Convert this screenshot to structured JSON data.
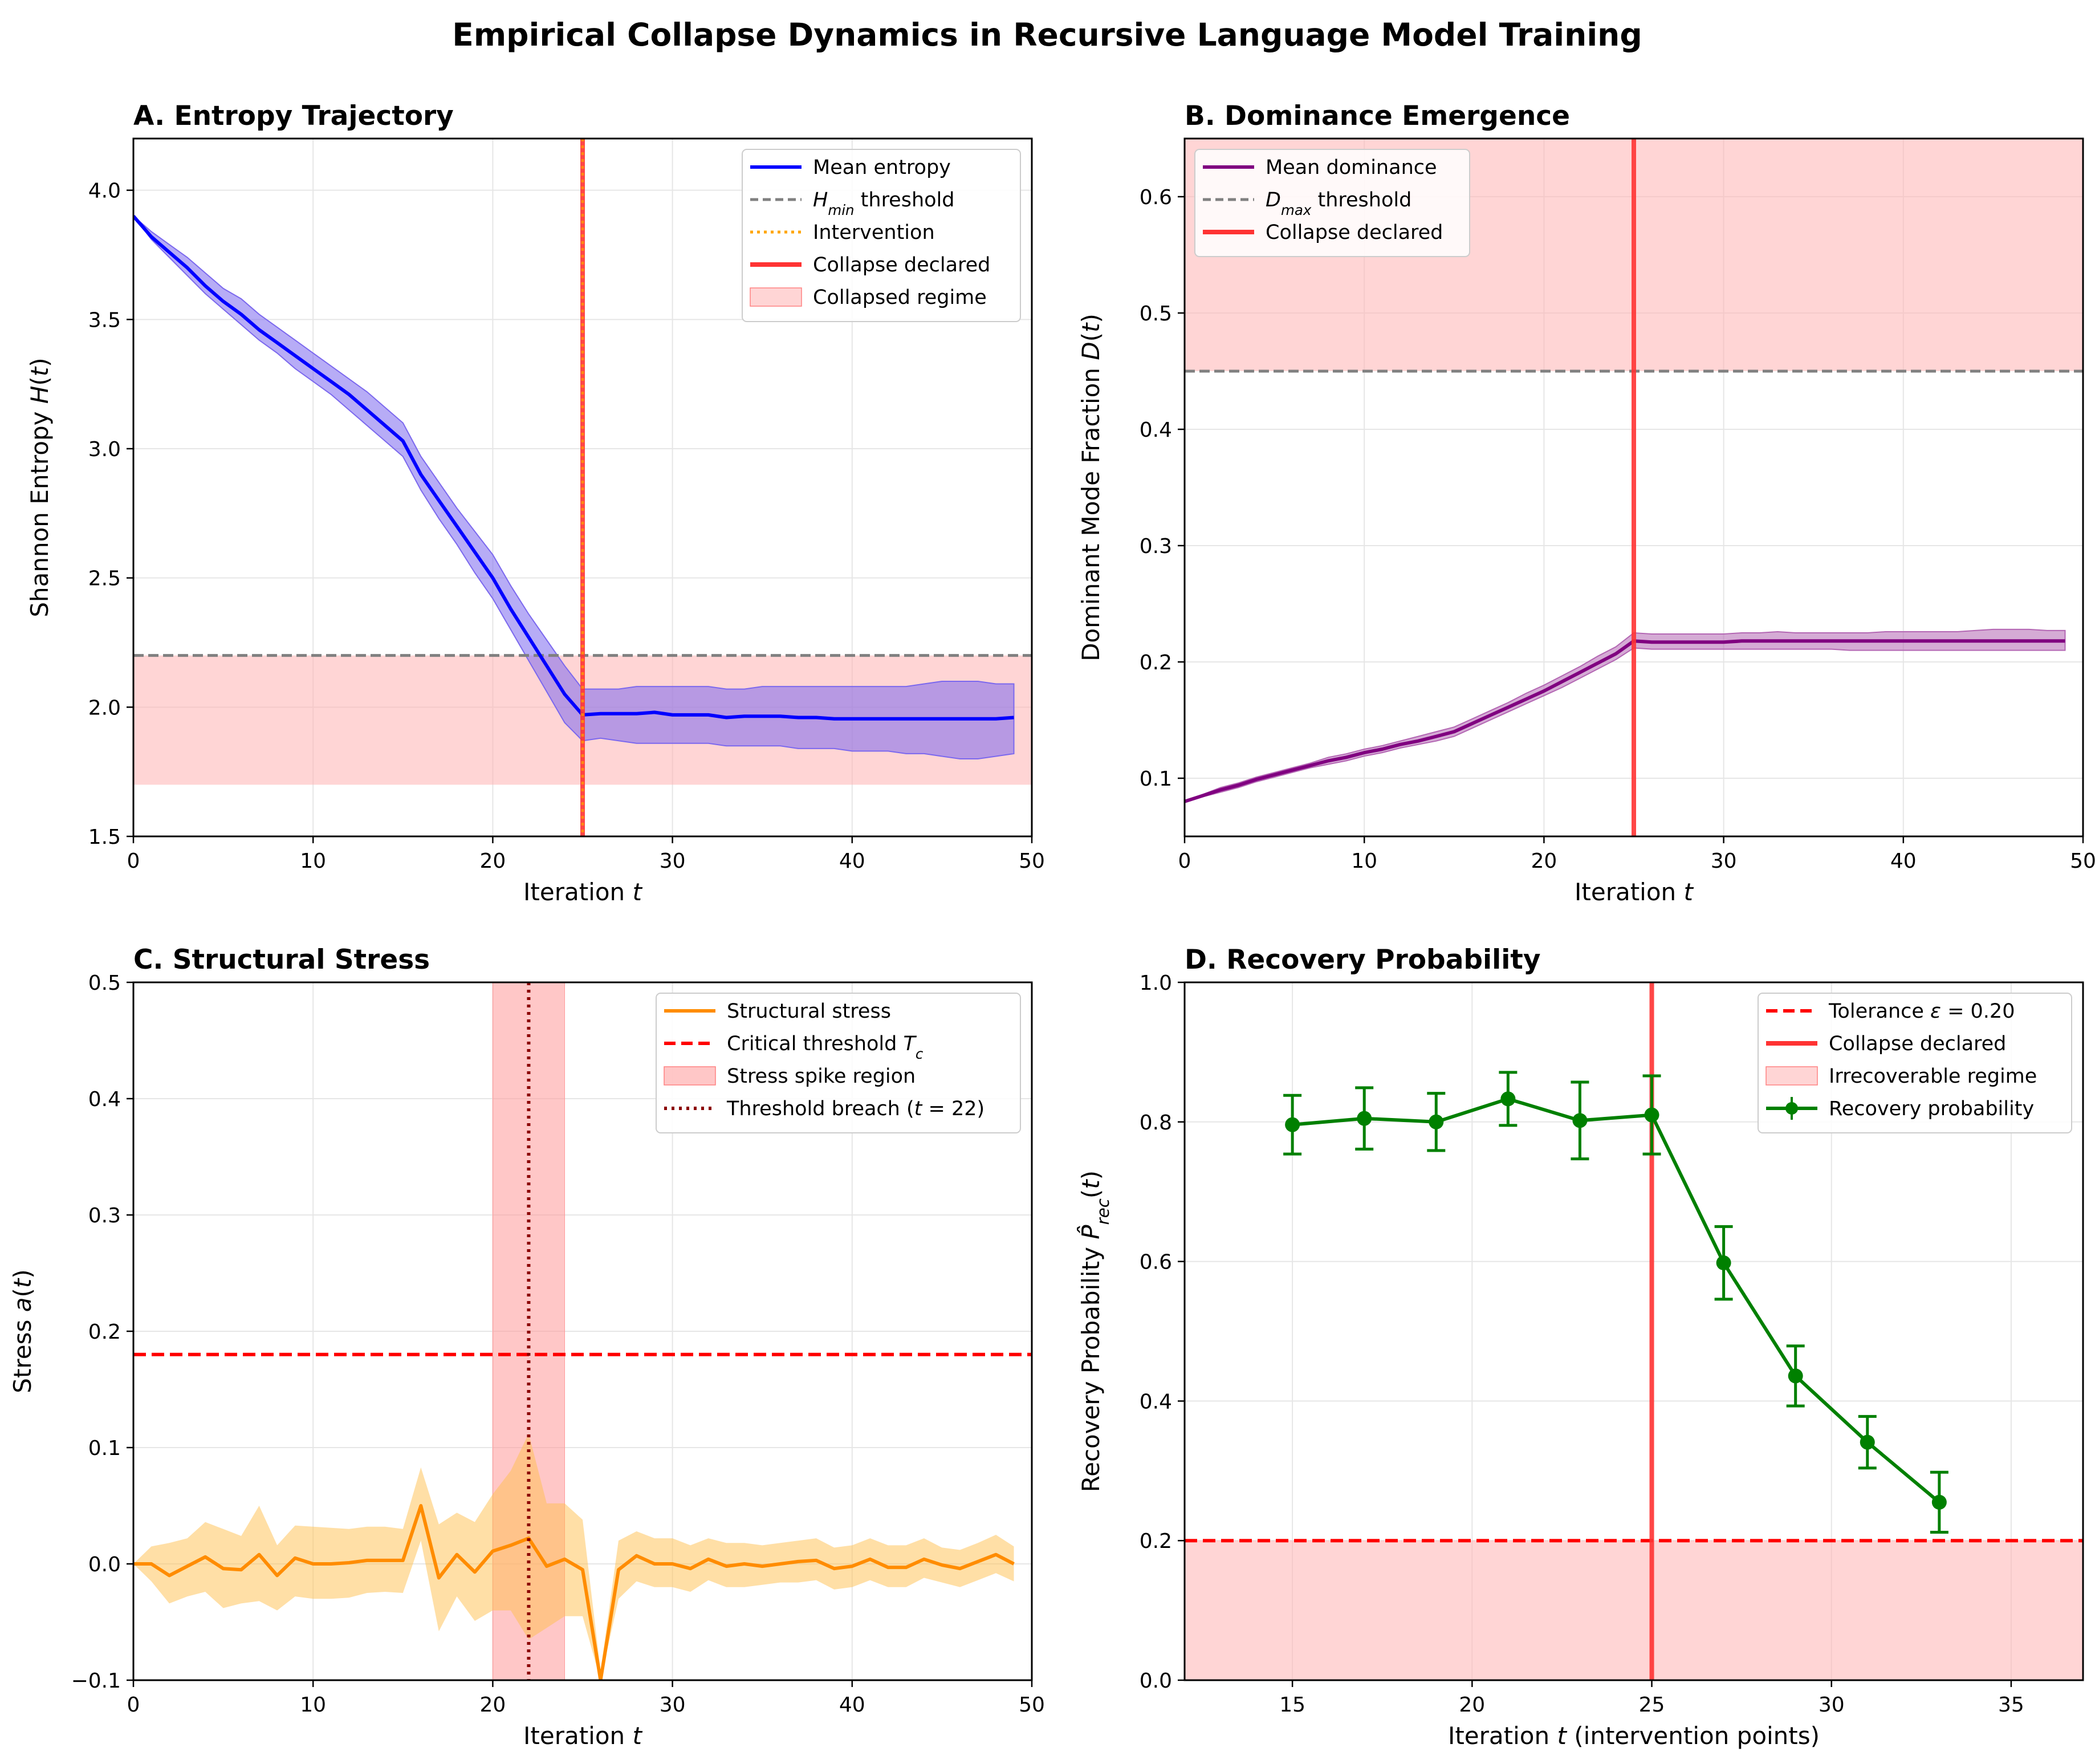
{
  "figure": {
    "title": "Empirical Collapse Dynamics in Recursive Language Model Training"
  },
  "colors": {
    "entropy": "#0000ff",
    "entropy_band": "#7b68ee",
    "dominance": "#800080",
    "stress": "#ff8c00",
    "stress_band": "#ffc04d",
    "recovery": "#008000",
    "collapse": "#ff3333",
    "threshold_gray": "#808080",
    "tolerance_red": "#ff0000",
    "intervention": "#ffa500",
    "breach": "#8b0000",
    "regime_fill": "#ffb3b3",
    "grid": "#e6e6e6"
  },
  "chart_data": [
    {
      "id": "A",
      "type": "line",
      "title": "A. Entropy Trajectory",
      "xlabel": "Iteration t",
      "ylabel": "Shannon Entropy H(t)",
      "xlim": [
        0,
        50
      ],
      "ylim": [
        1.5,
        4.2
      ],
      "xticks": [
        0,
        10,
        20,
        30,
        40,
        50
      ],
      "yticks": [
        1.5,
        2.0,
        2.5,
        3.0,
        3.5,
        4.0
      ],
      "ytick_labels": [
        "1.5",
        "2.0",
        "2.5",
        "3.0",
        "3.5",
        "4.0"
      ],
      "series": [
        {
          "name": "Mean entropy",
          "x": [
            0,
            1,
            2,
            3,
            4,
            5,
            6,
            7,
            8,
            9,
            10,
            11,
            12,
            13,
            14,
            15,
            16,
            17,
            18,
            19,
            20,
            21,
            22,
            23,
            24,
            25,
            26,
            27,
            28,
            29,
            30,
            31,
            32,
            33,
            34,
            35,
            36,
            37,
            38,
            39,
            40,
            41,
            42,
            43,
            44,
            45,
            46,
            47,
            48,
            49
          ],
          "y": [
            3.9,
            3.82,
            3.76,
            3.7,
            3.63,
            3.57,
            3.52,
            3.46,
            3.41,
            3.36,
            3.31,
            3.26,
            3.21,
            3.15,
            3.09,
            3.03,
            2.9,
            2.8,
            2.7,
            2.6,
            2.5,
            2.38,
            2.27,
            2.16,
            2.05,
            1.97,
            1.975,
            1.975,
            1.975,
            1.98,
            1.97,
            1.97,
            1.97,
            1.96,
            1.965,
            1.965,
            1.965,
            1.96,
            1.96,
            1.955,
            1.955,
            1.955,
            1.955,
            1.955,
            1.955,
            1.955,
            1.955,
            1.955,
            1.955,
            1.96
          ],
          "band_lower": [
            3.9,
            3.81,
            3.74,
            3.67,
            3.6,
            3.54,
            3.48,
            3.42,
            3.37,
            3.31,
            3.26,
            3.21,
            3.15,
            3.09,
            3.03,
            2.97,
            2.84,
            2.73,
            2.63,
            2.52,
            2.42,
            2.3,
            2.18,
            2.06,
            1.94,
            1.87,
            1.88,
            1.87,
            1.86,
            1.86,
            1.86,
            1.86,
            1.86,
            1.85,
            1.85,
            1.85,
            1.85,
            1.84,
            1.84,
            1.84,
            1.83,
            1.83,
            1.83,
            1.82,
            1.82,
            1.81,
            1.8,
            1.8,
            1.81,
            1.82
          ],
          "band_upper": [
            3.9,
            3.84,
            3.79,
            3.74,
            3.68,
            3.62,
            3.58,
            3.52,
            3.47,
            3.42,
            3.37,
            3.32,
            3.27,
            3.22,
            3.16,
            3.1,
            2.97,
            2.87,
            2.77,
            2.68,
            2.59,
            2.47,
            2.36,
            2.26,
            2.16,
            2.07,
            2.07,
            2.07,
            2.08,
            2.08,
            2.08,
            2.08,
            2.08,
            2.07,
            2.07,
            2.08,
            2.08,
            2.08,
            2.08,
            2.08,
            2.08,
            2.08,
            2.08,
            2.08,
            2.09,
            2.1,
            2.1,
            2.1,
            2.09,
            2.09
          ]
        }
      ],
      "reference_lines": {
        "h_min_threshold": 2.2,
        "intervention_t": 25,
        "collapse_t": 25
      },
      "shaded_region": {
        "y0": 1.7,
        "y1": 2.2
      },
      "legend": {
        "position": "top-right",
        "entries": [
          {
            "label_base": "H",
            "label_sub": "min",
            "label_rest": " threshold"
          },
          {
            "label": "Mean entropy"
          },
          {
            "label": "Intervention"
          },
          {
            "label": "Collapse declared"
          },
          {
            "label": "Collapsed regime"
          }
        ]
      }
    },
    {
      "id": "B",
      "type": "line",
      "title": "B. Dominance Emergence",
      "xlabel": "Iteration t",
      "ylabel": "Dominant Mode Fraction D(t)",
      "xlim": [
        0,
        50
      ],
      "ylim": [
        0.05,
        0.65
      ],
      "xticks": [
        0,
        10,
        20,
        30,
        40,
        50
      ],
      "yticks": [
        0.1,
        0.2,
        0.3,
        0.4,
        0.5,
        0.6
      ],
      "ytick_labels": [
        "0.1",
        "0.2",
        "0.3",
        "0.4",
        "0.5",
        "0.6"
      ],
      "series": [
        {
          "name": "Mean dominance",
          "x": [
            0,
            1,
            2,
            3,
            4,
            5,
            6,
            7,
            8,
            9,
            10,
            11,
            12,
            13,
            14,
            15,
            16,
            17,
            18,
            19,
            20,
            21,
            22,
            23,
            24,
            25,
            26,
            27,
            28,
            29,
            30,
            31,
            32,
            33,
            34,
            35,
            36,
            37,
            38,
            39,
            40,
            41,
            42,
            43,
            44,
            45,
            46,
            47,
            48,
            49
          ],
          "y": [
            0.08,
            0.085,
            0.09,
            0.094,
            0.099,
            0.103,
            0.107,
            0.111,
            0.115,
            0.118,
            0.122,
            0.125,
            0.129,
            0.132,
            0.136,
            0.14,
            0.147,
            0.154,
            0.161,
            0.168,
            0.175,
            0.183,
            0.191,
            0.199,
            0.207,
            0.218,
            0.217,
            0.217,
            0.217,
            0.217,
            0.217,
            0.218,
            0.218,
            0.218,
            0.218,
            0.218,
            0.218,
            0.218,
            0.218,
            0.218,
            0.218,
            0.218,
            0.218,
            0.218,
            0.218,
            0.218,
            0.218,
            0.218,
            0.218,
            0.218
          ],
          "band_lower": [
            0.08,
            0.084,
            0.088,
            0.092,
            0.097,
            0.101,
            0.105,
            0.109,
            0.112,
            0.115,
            0.119,
            0.122,
            0.126,
            0.129,
            0.132,
            0.136,
            0.143,
            0.15,
            0.157,
            0.164,
            0.171,
            0.178,
            0.186,
            0.194,
            0.202,
            0.212,
            0.211,
            0.211,
            0.211,
            0.211,
            0.211,
            0.211,
            0.211,
            0.211,
            0.211,
            0.211,
            0.211,
            0.21,
            0.21,
            0.21,
            0.21,
            0.21,
            0.21,
            0.21,
            0.21,
            0.21,
            0.21,
            0.21,
            0.21,
            0.21
          ],
          "band_upper": [
            0.08,
            0.086,
            0.092,
            0.096,
            0.101,
            0.105,
            0.109,
            0.113,
            0.118,
            0.121,
            0.125,
            0.128,
            0.132,
            0.136,
            0.14,
            0.144,
            0.151,
            0.158,
            0.165,
            0.173,
            0.18,
            0.188,
            0.196,
            0.205,
            0.213,
            0.225,
            0.224,
            0.224,
            0.224,
            0.224,
            0.224,
            0.225,
            0.225,
            0.226,
            0.225,
            0.225,
            0.225,
            0.225,
            0.225,
            0.226,
            0.226,
            0.226,
            0.226,
            0.226,
            0.227,
            0.228,
            0.228,
            0.228,
            0.227,
            0.227
          ]
        }
      ],
      "reference_lines": {
        "d_max_threshold": 0.45,
        "collapse_t": 25
      },
      "shaded_region": {
        "y0": 0.45,
        "y1": 0.65
      },
      "legend": {
        "position": "top-left",
        "entries": [
          {
            "label": "Mean dominance"
          },
          {
            "label_base": "D",
            "label_sub": "max",
            "label_rest": " threshold"
          },
          {
            "label": "Collapse declared"
          }
        ]
      }
    },
    {
      "id": "C",
      "type": "line",
      "title": "C. Structural Stress",
      "xlabel": "Iteration t",
      "ylabel": "Stress a(t)",
      "xlim": [
        0,
        50
      ],
      "ylim": [
        -0.1,
        0.5
      ],
      "xticks": [
        0,
        10,
        20,
        30,
        40,
        50
      ],
      "yticks": [
        -0.1,
        0.0,
        0.1,
        0.2,
        0.3,
        0.4,
        0.5
      ],
      "ytick_labels": [
        "−0.1",
        "0.0",
        "0.1",
        "0.2",
        "0.3",
        "0.4",
        "0.5"
      ],
      "series": [
        {
          "name": "Structural stress",
          "x": [
            0,
            1,
            2,
            3,
            4,
            5,
            6,
            7,
            8,
            9,
            10,
            11,
            12,
            13,
            14,
            15,
            16,
            17,
            18,
            19,
            20,
            21,
            22,
            23,
            24,
            25,
            26,
            27,
            28,
            29,
            30,
            31,
            32,
            33,
            34,
            35,
            36,
            37,
            38,
            39,
            40,
            41,
            42,
            43,
            44,
            45,
            46,
            47,
            48,
            49
          ],
          "y": [
            0.0,
            0.0,
            -0.01,
            -0.002,
            0.006,
            -0.004,
            -0.005,
            0.008,
            -0.01,
            0.005,
            0.0,
            0.0,
            0.001,
            0.003,
            0.003,
            0.003,
            0.05,
            -0.012,
            0.008,
            -0.007,
            0.011,
            0.016,
            0.022,
            -0.002,
            0.004,
            -0.005,
            -0.1,
            -0.005,
            0.007,
            0.0,
            0.0,
            -0.004,
            0.004,
            -0.002,
            0.0,
            -0.002,
            0.0,
            0.002,
            0.003,
            -0.004,
            -0.002,
            0.004,
            -0.003,
            -0.003,
            0.004,
            -0.001,
            -0.004,
            0.002,
            0.008,
            0.0
          ],
          "band_lower": [
            0.0,
            -0.015,
            -0.034,
            -0.028,
            -0.024,
            -0.038,
            -0.034,
            -0.032,
            -0.04,
            -0.028,
            -0.03,
            -0.03,
            -0.029,
            -0.025,
            -0.024,
            -0.025,
            0.02,
            -0.058,
            -0.028,
            -0.049,
            -0.04,
            -0.04,
            -0.065,
            -0.055,
            -0.045,
            -0.045,
            -0.1,
            -0.03,
            -0.015,
            -0.02,
            -0.02,
            -0.024,
            -0.014,
            -0.02,
            -0.02,
            -0.018,
            -0.016,
            -0.016,
            -0.014,
            -0.022,
            -0.02,
            -0.014,
            -0.02,
            -0.02,
            -0.012,
            -0.016,
            -0.02,
            -0.014,
            -0.008,
            -0.015
          ],
          "band_upper": [
            0.0,
            0.015,
            0.018,
            0.022,
            0.036,
            0.03,
            0.024,
            0.05,
            0.016,
            0.033,
            0.032,
            0.031,
            0.03,
            0.032,
            0.032,
            0.03,
            0.083,
            0.034,
            0.044,
            0.036,
            0.06,
            0.08,
            0.112,
            0.052,
            0.052,
            0.038,
            -0.092,
            0.02,
            0.028,
            0.022,
            0.022,
            0.016,
            0.022,
            0.018,
            0.018,
            0.016,
            0.018,
            0.02,
            0.022,
            0.014,
            0.016,
            0.022,
            0.016,
            0.016,
            0.022,
            0.014,
            0.012,
            0.018,
            0.025,
            0.015
          ]
        }
      ],
      "reference_lines": {
        "critical_threshold": 0.18,
        "breach_t": 22
      },
      "shaded_region": {
        "x0": 20,
        "x1": 24
      },
      "legend": {
        "position": "top-right",
        "entries": [
          {
            "label": "Structural stress"
          },
          {
            "label_base": "Critical threshold T",
            "label_sub": "c",
            "label_rest": ""
          },
          {
            "label": "Stress spike region"
          },
          {
            "label": "Threshold breach (t = 22)"
          }
        ]
      }
    },
    {
      "id": "D",
      "type": "line",
      "title": "D. Recovery Probability",
      "xlabel": "Iteration t (intervention points)",
      "ylabel": "Recovery Probability P̂rec(t)",
      "xlim": [
        12,
        37
      ],
      "ylim": [
        0.0,
        1.0
      ],
      "xticks": [
        15,
        20,
        25,
        30,
        35
      ],
      "yticks": [
        0.0,
        0.2,
        0.4,
        0.6,
        0.8,
        1.0
      ],
      "ytick_labels": [
        "0.0",
        "0.2",
        "0.4",
        "0.6",
        "0.8",
        "1.0"
      ],
      "series": [
        {
          "name": "Recovery probability",
          "x": [
            15,
            17,
            19,
            21,
            23,
            25,
            27,
            29,
            31,
            33
          ],
          "y": [
            0.796,
            0.805,
            0.8,
            0.833,
            0.802,
            0.81,
            0.598,
            0.436,
            0.341,
            0.255
          ],
          "err": [
            0.042,
            0.044,
            0.041,
            0.038,
            0.055,
            0.056,
            0.052,
            0.043,
            0.037,
            0.043
          ]
        }
      ],
      "reference_lines": {
        "tolerance": 0.2,
        "collapse_t": 25
      },
      "shaded_region": {
        "y0": 0.0,
        "y1": 0.2
      },
      "legend": {
        "position": "top-right",
        "entries": [
          {
            "label": "Tolerance ε = 0.20"
          },
          {
            "label": "Collapse declared"
          },
          {
            "label": "Irrecoverable regime"
          },
          {
            "label": "Recovery probability"
          }
        ]
      }
    }
  ]
}
